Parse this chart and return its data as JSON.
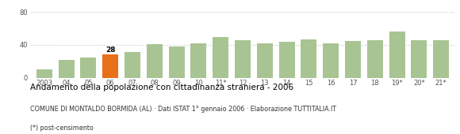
{
  "categories": [
    "2003",
    "04",
    "05",
    "06",
    "07",
    "08",
    "09",
    "10",
    "11*",
    "12",
    "13",
    "14",
    "15",
    "16",
    "17",
    "18",
    "19*",
    "20*",
    "21*"
  ],
  "values": [
    10,
    22,
    25,
    28,
    31,
    41,
    38,
    42,
    49,
    46,
    42,
    44,
    47,
    42,
    45,
    46,
    56,
    46,
    46
  ],
  "highlight_index": 3,
  "bar_color_normal": "#a8c492",
  "bar_color_highlight": "#e8701a",
  "title": "Andamento della popolazione con cittadinanza straniera - 2006",
  "subtitle": "COMUNE DI MONTALDO BORMIDA (AL) · Dati ISTAT 1° gennaio 2006 · Elaborazione TUTTITALIA.IT",
  "footnote": "(*) post-censimento",
  "highlight_label": "28",
  "ylim": [
    0,
    88
  ],
  "yticks": [
    0,
    40,
    80
  ],
  "bg_color": "#ffffff",
  "grid_color": "#bbbbbb"
}
